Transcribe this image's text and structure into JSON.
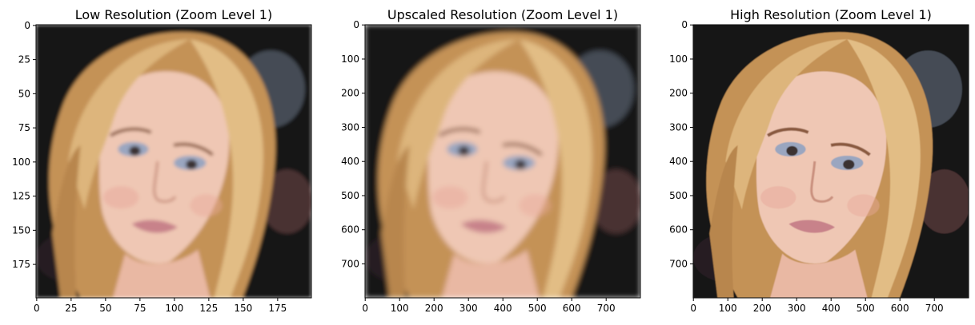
{
  "chart_data": [
    {
      "type": "image",
      "title": "Low Resolution (Zoom Level 1)",
      "image_size": [
        200,
        200
      ],
      "xlim": [
        0,
        200
      ],
      "ylim": [
        200,
        0
      ],
      "x_ticks": [
        0,
        25,
        50,
        75,
        100,
        125,
        150,
        175
      ],
      "y_ticks": [
        0,
        25,
        50,
        75,
        100,
        125,
        150,
        175
      ],
      "xlabel": "",
      "ylabel": "",
      "blur": 2.2
    },
    {
      "type": "image",
      "title": "Upscaled Resolution (Zoom Level 1)",
      "image_size": [
        800,
        800
      ],
      "xlim": [
        0,
        800
      ],
      "ylim": [
        800,
        0
      ],
      "x_ticks": [
        0,
        100,
        200,
        300,
        400,
        500,
        600,
        700
      ],
      "y_ticks": [
        0,
        100,
        200,
        300,
        400,
        500,
        600,
        700
      ],
      "xlabel": "",
      "ylabel": "",
      "blur": 3.2
    },
    {
      "type": "image",
      "title": "High Resolution (Zoom Level 1)",
      "image_size": [
        800,
        800
      ],
      "xlim": [
        0,
        800
      ],
      "ylim": [
        800,
        0
      ],
      "x_ticks": [
        0,
        100,
        200,
        300,
        400,
        500,
        600,
        700
      ],
      "y_ticks": [
        0,
        100,
        200,
        300,
        400,
        500,
        600,
        700
      ],
      "xlabel": "",
      "ylabel": "",
      "blur": 0.6
    }
  ],
  "colors": {
    "background_dark": "#141418",
    "hair": "#d9b277",
    "skin": "#efc7b4",
    "eyeshadow": "#9aa6c0",
    "lips": "#c8828a"
  }
}
